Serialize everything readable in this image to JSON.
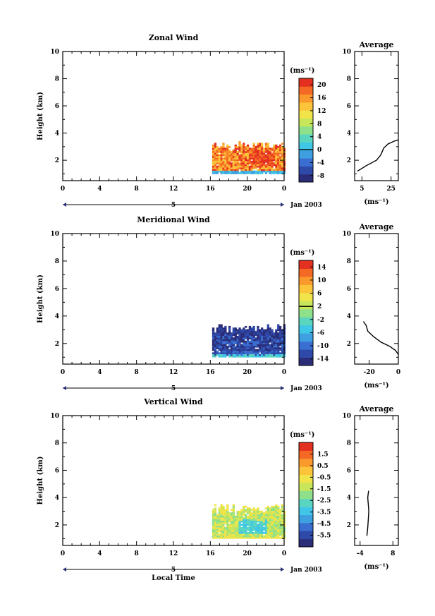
{
  "figure": {
    "xlabel": "Local Time",
    "date_label": "Jan 2003",
    "day_label": "5",
    "unit_label": "(ms⁻¹)",
    "ylabel": "Height (km)",
    "average_title": "Average"
  },
  "colors": {
    "palette": [
      "#2b2d78",
      "#2e49a8",
      "#3a6fd1",
      "#3ea0e0",
      "#40c6e6",
      "#5ad6c0",
      "#8ee08a",
      "#c8e65a",
      "#f0e44a",
      "#fbc43a",
      "#fa9a2c",
      "#f46a24",
      "#e43020"
    ]
  },
  "chart_data": [
    {
      "type": "heatmap",
      "name": "zonal",
      "title": "Zonal Wind",
      "xlim": [
        0,
        24
      ],
      "ylim": [
        0.5,
        10
      ],
      "xticks": [
        "0",
        "4",
        "8",
        "12",
        "16",
        "20",
        "0"
      ],
      "yticks": [
        "2",
        "4",
        "6",
        "8",
        "10"
      ],
      "data_x_range": [
        16.2,
        24
      ],
      "data_height_range": [
        1.0,
        3.3
      ],
      "colorbar": {
        "ticks": [
          "20",
          "16",
          "12",
          "8",
          "4",
          "0",
          "-4",
          "-8"
        ],
        "range": [
          -10,
          22
        ],
        "zero_line": 0
      },
      "average": {
        "xticks": [
          "5",
          "25"
        ],
        "xlim": [
          0,
          30
        ],
        "profile": [
          [
            2,
            1.2
          ],
          [
            8,
            1.6
          ],
          [
            15,
            2.0
          ],
          [
            18,
            2.4
          ],
          [
            20,
            2.9
          ],
          [
            23,
            3.2
          ],
          [
            27,
            3.4
          ],
          [
            30,
            3.5
          ]
        ]
      }
    },
    {
      "type": "heatmap",
      "name": "meridional",
      "title": "Meridional Wind",
      "xlim": [
        0,
        24
      ],
      "ylim": [
        0.5,
        10
      ],
      "xticks": [
        "0",
        "4",
        "8",
        "12",
        "16",
        "20",
        "0"
      ],
      "yticks": [
        "2",
        "4",
        "6",
        "8",
        "10"
      ],
      "data_x_range": [
        16.2,
        24
      ],
      "data_height_range": [
        1.0,
        3.4
      ],
      "colorbar": {
        "ticks": [
          "14",
          "10",
          "6",
          "2",
          "-2",
          "-6",
          "-10",
          "-14"
        ],
        "range": [
          -16,
          16
        ],
        "zero_line": 2
      },
      "average": {
        "xticks": [
          "-20",
          "0"
        ],
        "xlim": [
          -30,
          0
        ],
        "profile": [
          [
            -24,
            3.6
          ],
          [
            -22,
            3.3
          ],
          [
            -21,
            2.9
          ],
          [
            -17,
            2.5
          ],
          [
            -12,
            2.1
          ],
          [
            -6,
            1.8
          ],
          [
            -2,
            1.5
          ],
          [
            0,
            1.2
          ]
        ]
      }
    },
    {
      "type": "heatmap",
      "name": "vertical",
      "title": "Vertical Wind",
      "xlim": [
        0,
        24
      ],
      "ylim": [
        0.5,
        10
      ],
      "xticks": [
        "0",
        "4",
        "8",
        "12",
        "16",
        "20",
        "0"
      ],
      "yticks": [
        "2",
        "4",
        "6",
        "8",
        "10"
      ],
      "data_x_range": [
        16.2,
        24
      ],
      "data_height_range": [
        1.0,
        3.5
      ],
      "colorbar": {
        "ticks": [
          "1.5",
          "0.5",
          "-0.5",
          "-1.5",
          "-2.5",
          "-3.5",
          "-4.5",
          "-5.5"
        ],
        "range": [
          -6.5,
          2.5
        ],
        "zero_line": null
      },
      "average": {
        "xticks": [
          "-4",
          "8"
        ],
        "xlim": [
          -6,
          10
        ],
        "profile": [
          [
            -1.5,
            1.2
          ],
          [
            -1.2,
            1.8
          ],
          [
            -1.0,
            2.4
          ],
          [
            -0.8,
            3.0
          ],
          [
            -1.0,
            3.5
          ],
          [
            -1.2,
            4.0
          ],
          [
            -0.9,
            4.5
          ]
        ]
      }
    }
  ]
}
